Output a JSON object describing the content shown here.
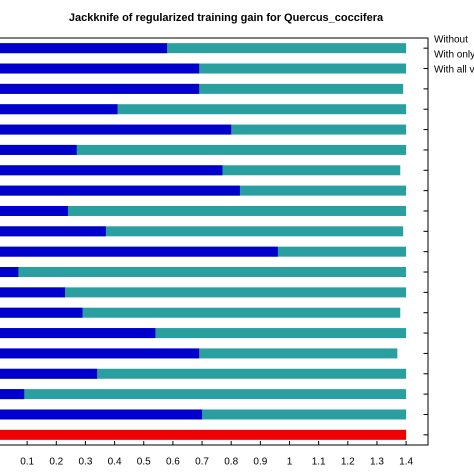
{
  "chart_data": {
    "type": "hbar",
    "title": "Jackknife of regularized training gain for Quercus_coccifera",
    "categories": [
      null,
      null,
      null,
      null,
      null,
      null,
      null,
      null,
      null,
      null,
      null,
      null,
      null,
      null,
      null,
      null,
      null,
      null,
      null,
      null
    ],
    "series": [
      {
        "name": "Without",
        "color": "#2a9f9f",
        "values": [
          1.4,
          1.4,
          1.39,
          1.4,
          1.4,
          1.4,
          1.38,
          1.4,
          1.4,
          1.39,
          1.4,
          1.4,
          1.4,
          1.38,
          1.4,
          1.37,
          1.4,
          1.4,
          1.4,
          null
        ]
      },
      {
        "name": "With only",
        "color": "#0000cc",
        "values": [
          0.58,
          0.69,
          0.69,
          0.41,
          0.8,
          0.27,
          0.77,
          0.83,
          0.24,
          0.37,
          0.96,
          0.07,
          0.23,
          0.29,
          0.54,
          0.69,
          0.34,
          0.09,
          0.7,
          null
        ]
      },
      {
        "name": "With all v",
        "color": "#ee0000",
        "values": [
          null,
          null,
          null,
          null,
          null,
          null,
          null,
          null,
          null,
          null,
          null,
          null,
          null,
          null,
          null,
          null,
          null,
          null,
          null,
          1.4
        ]
      }
    ],
    "xlim": [
      0,
      1.47
    ],
    "xticks": [
      0.1,
      0.2,
      0.3,
      0.4,
      0.5,
      0.6,
      0.7,
      0.8,
      0.9,
      1,
      1.1,
      1.2,
      1.3,
      1.4
    ]
  }
}
